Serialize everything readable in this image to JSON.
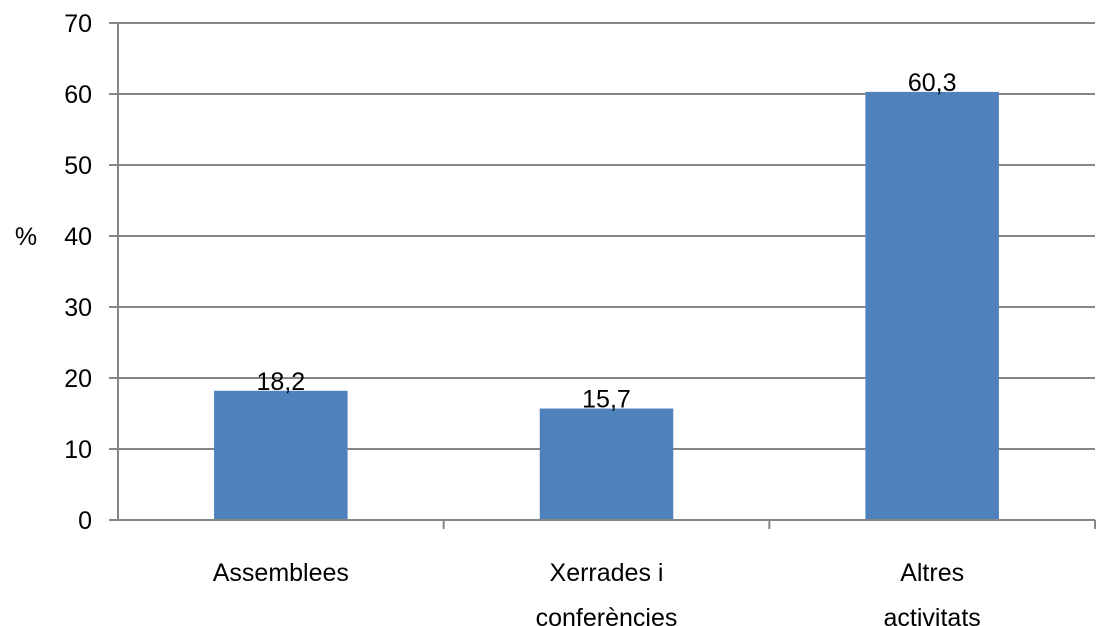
{
  "chart_data": {
    "type": "bar",
    "title": "",
    "xlabel": "",
    "ylabel": "%",
    "ylim": [
      0,
      70
    ],
    "yticks": [
      0,
      10,
      20,
      30,
      40,
      50,
      60,
      70
    ],
    "grid": true,
    "legend": "none",
    "bar_color": "#4f81bd",
    "grid_color": "#868686",
    "categories": [
      [
        "Assemblees"
      ],
      [
        "Xerrades i",
        "conferències"
      ],
      [
        "Altres",
        "activitats"
      ]
    ],
    "values": [
      18.2,
      15.7,
      60.3
    ],
    "data_labels": [
      "18,2",
      "15,7",
      "60,3"
    ]
  }
}
